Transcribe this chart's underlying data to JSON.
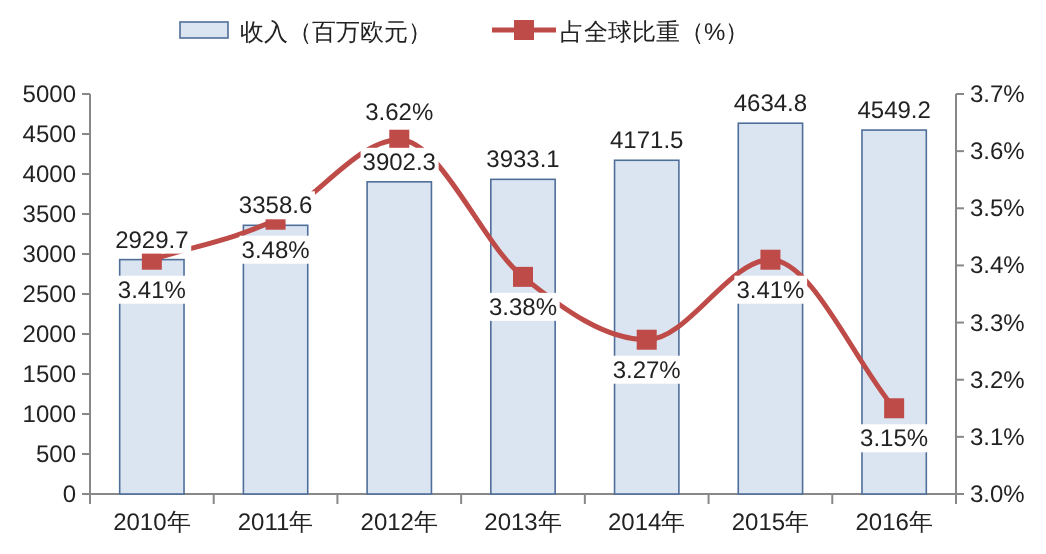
{
  "chart_data": {
    "type": "bar",
    "categories": [
      "2010年",
      "2011年",
      "2012年",
      "2013年",
      "2014年",
      "2015年",
      "2016年"
    ],
    "series": [
      {
        "name": "收入（百万欧元）",
        "color": "#dbe5f1",
        "values": [
          2929.7,
          3358.6,
          3902.3,
          3933.1,
          4171.5,
          4634.8,
          4549.2
        ],
        "value_labels": [
          "2929.7",
          "3358.6",
          "3902.3",
          "3933.1",
          "4171.5",
          "4634.8",
          "4549.2"
        ]
      },
      {
        "name": "占全球比重（%）",
        "type": "line",
        "axis": "y2",
        "color": "#be4b48",
        "values": [
          3.41,
          3.48,
          3.62,
          3.38,
          3.27,
          3.41,
          3.15
        ],
        "value_labels": [
          "3.41%",
          "3.48%",
          "3.62%",
          "3.38%",
          "3.27%",
          "3.41%",
          "3.15%"
        ]
      }
    ],
    "ylim": [
      0,
      5000
    ],
    "yticks": [
      0,
      500,
      1000,
      1500,
      2000,
      2500,
      3000,
      3500,
      4000,
      4500,
      5000
    ],
    "y2lim": [
      3.0,
      3.7
    ],
    "y2ticks": [
      {
        "value": 3.0,
        "label": "3.0%"
      },
      {
        "value": 3.1,
        "label": "3.1%"
      },
      {
        "value": 3.2,
        "label": "3.2%"
      },
      {
        "value": 3.3,
        "label": "3.3%"
      },
      {
        "value": 3.4,
        "label": "3.4%"
      },
      {
        "value": 3.5,
        "label": "3.5%"
      },
      {
        "value": 3.6,
        "label": "3.6%"
      },
      {
        "value": 3.7,
        "label": "3.7%"
      }
    ],
    "legend": "top",
    "marker": "square",
    "line_style": "solid",
    "grid": false
  }
}
